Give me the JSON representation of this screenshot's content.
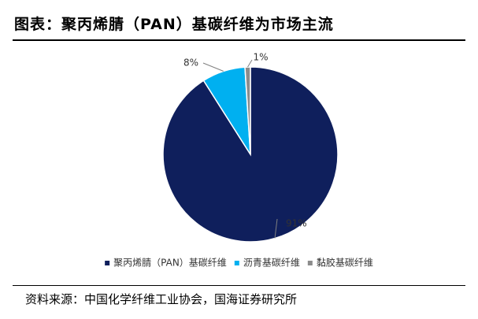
{
  "header": {
    "title": "图表：聚丙烯腈（PAN）基碳纤维为市场主流"
  },
  "footer": {
    "source": "资料来源：中国化学纤维工业协会，国海证券研究所"
  },
  "chart_data": {
    "type": "pie",
    "title": "",
    "legend_position": "bottom",
    "slices": [
      {
        "label": "聚丙烯腈（PAN）基碳纤维",
        "value": 91,
        "display": "91%",
        "color": "#0f1f5c"
      },
      {
        "label": "沥青基碳纤维",
        "value": 8,
        "display": "8%",
        "color": "#00b0f0"
      },
      {
        "label": "黏胶基碳纤维",
        "value": 1,
        "display": "1%",
        "color": "#8c8c8c"
      }
    ]
  }
}
